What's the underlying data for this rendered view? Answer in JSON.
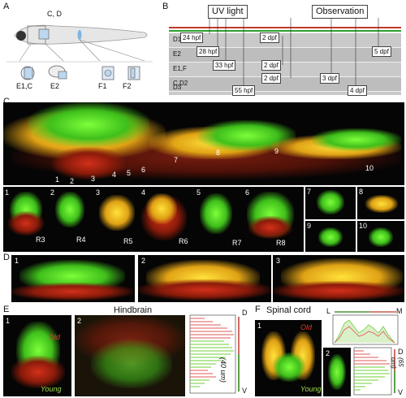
{
  "panels": {
    "A": "A",
    "B": "B",
    "C": "C",
    "D": "D",
    "E": "E",
    "F": "F"
  },
  "panel_a": {
    "box_label": "C, D",
    "insets": [
      "E1,C",
      "E2",
      "F1",
      "F2"
    ]
  },
  "panel_b": {
    "uv_title": "UV light",
    "obs_title": "Observation",
    "rows": [
      {
        "label": "D1",
        "uv": "24 hpf",
        "obs": "2 dpf"
      },
      {
        "label": "E2",
        "uv": "28 hpf",
        "obs": "5 dpf"
      },
      {
        "label": "E1,F",
        "uv": "33 hpf",
        "obs": "2 dpf"
      },
      {
        "label": "C,D2",
        "uv": "",
        "obs": "2 dpf",
        "obs2": "3 dpf"
      },
      {
        "label": "D3",
        "uv": "55 hpf",
        "obs": "4 dpf"
      }
    ],
    "colors": {
      "red": "#c0392b",
      "green": "#2e9e2e"
    }
  },
  "panel_c": {
    "top_numbers": [
      "1",
      "2",
      "3",
      "4",
      "5",
      "6",
      "7",
      "8",
      "9",
      "10"
    ],
    "sections": [
      {
        "num": "1",
        "label": "R3"
      },
      {
        "num": "2",
        "label": "R4"
      },
      {
        "num": "3",
        "label": "R5"
      },
      {
        "num": "4",
        "label": "R6"
      },
      {
        "num": "5",
        "label": "R7"
      },
      {
        "num": "6",
        "label": "R8"
      },
      {
        "num": "7",
        "label": ""
      },
      {
        "num": "8",
        "label": ""
      },
      {
        "num": "9",
        "label": ""
      },
      {
        "num": "10",
        "label": ""
      }
    ]
  },
  "panel_d": {
    "nums": [
      "1",
      "2",
      "3"
    ]
  },
  "panel_e": {
    "title": "Hindbrain",
    "sub1": "1",
    "sub2": "2",
    "old": "Old",
    "young": "Young",
    "axis_top": "D",
    "axis_bottom": "V",
    "axis_label": "(40 um)"
  },
  "panel_f": {
    "title": "Spinal cord",
    "sub1": "1",
    "sub2": "2",
    "old": "Old",
    "young": "Young",
    "axis_l": "L",
    "axis_m": "M",
    "axis_top": "D",
    "axis_bottom": "V",
    "axis_label": "(65 um)"
  }
}
